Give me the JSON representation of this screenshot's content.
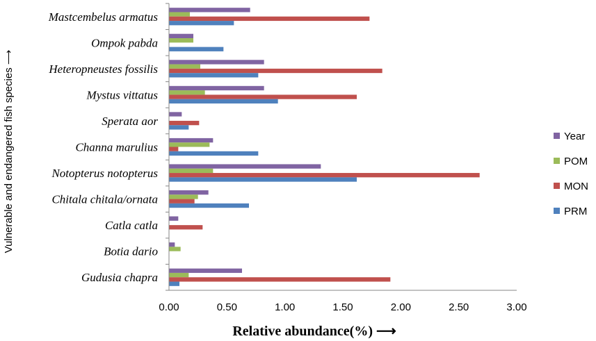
{
  "chart_data": {
    "type": "bar",
    "orientation": "horizontal",
    "categories": [
      "Mastcembelus armatus",
      "Ompok pabda",
      "Heteropneustes fossilis",
      "Mystus vittatus",
      "Sperata aor",
      "Channa marulius",
      "Notopterus notopterus",
      "Chitala chitala/ornata",
      "Catla catla",
      "Botia dario",
      "Gudusia chapra"
    ],
    "series": [
      {
        "name": "Year",
        "color": "#8064a2",
        "values": [
          0.7,
          0.21,
          0.82,
          0.82,
          0.11,
          0.38,
          1.31,
          0.34,
          0.08,
          0.05,
          0.63
        ]
      },
      {
        "name": "POM",
        "color": "#9bbb59",
        "values": [
          0.18,
          0.21,
          0.27,
          0.31,
          0.0,
          0.35,
          0.38,
          0.25,
          0.0,
          0.1,
          0.17
        ]
      },
      {
        "name": "MON",
        "color": "#c0504d",
        "values": [
          1.73,
          0.0,
          1.84,
          1.62,
          0.26,
          0.08,
          2.68,
          0.22,
          0.29,
          0.0,
          1.91
        ]
      },
      {
        "name": "PRM",
        "color": "#4f81bd",
        "values": [
          0.56,
          0.47,
          0.77,
          0.94,
          0.17,
          0.77,
          1.62,
          0.69,
          0.0,
          0.0,
          0.09
        ]
      }
    ],
    "xlim": [
      0,
      3
    ],
    "xticks": [
      "0.00",
      "0.50",
      "1.00",
      "1.50",
      "2.00",
      "2.50",
      "3.00"
    ],
    "xlabel": "Relative abundance(%) ⟶",
    "ylabel": "Vulnerable and endangered fish species ⟶",
    "legend": [
      "Year",
      "POM",
      "MON",
      "PRM"
    ],
    "legend_position": "right",
    "grid": false
  }
}
